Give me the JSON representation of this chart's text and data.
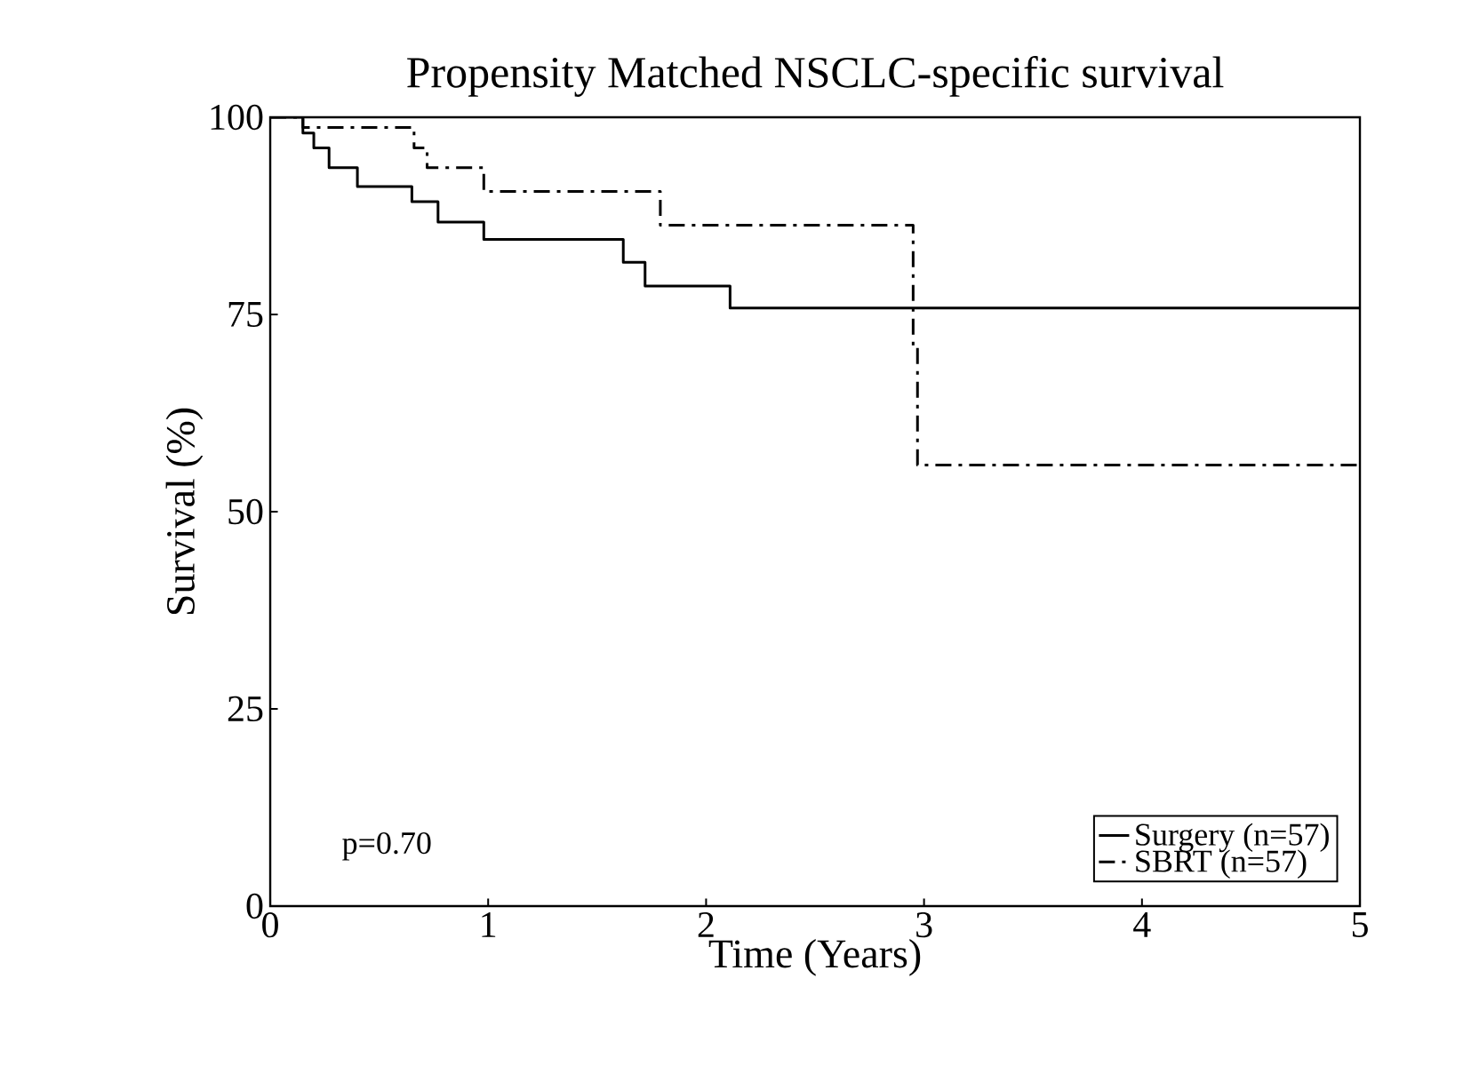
{
  "chart_data": {
    "type": "step",
    "title": "Propensity Matched NSCLC-specific survival",
    "xlabel": "Time (Years)",
    "ylabel": "Survival (%)",
    "xlim": [
      0,
      5
    ],
    "xticks": [
      0,
      1,
      2,
      3,
      4,
      5
    ],
    "ylim": [
      0,
      100
    ],
    "yticks": [
      0,
      25,
      50,
      75,
      100
    ],
    "legend": "bottom right",
    "grid": false,
    "marker": "none",
    "annotations": [
      "p=0.70"
    ],
    "series": [
      {
        "name": "Surgery (n=57)",
        "color": "#000000",
        "line_style": "solid",
        "x": [
          0,
          0.15,
          0.2,
          0.27,
          0.4,
          0.65,
          0.77,
          0.98,
          1.62,
          1.72,
          2.11,
          5
        ],
        "values": [
          100,
          98,
          96.1,
          93.6,
          91.2,
          89.3,
          86.7,
          84.5,
          81.6,
          78.6,
          75.8,
          75.8
        ]
      },
      {
        "name": "SBRT (n=57)",
        "color": "#000000",
        "line_style": "dashed",
        "x": [
          0,
          0.15,
          0.66,
          0.72,
          0.98,
          1.79,
          2.95,
          2.97,
          5
        ],
        "values": [
          100,
          98.7,
          96.1,
          93.6,
          90.6,
          86.3,
          70.9,
          55.9,
          55.9
        ]
      }
    ]
  }
}
